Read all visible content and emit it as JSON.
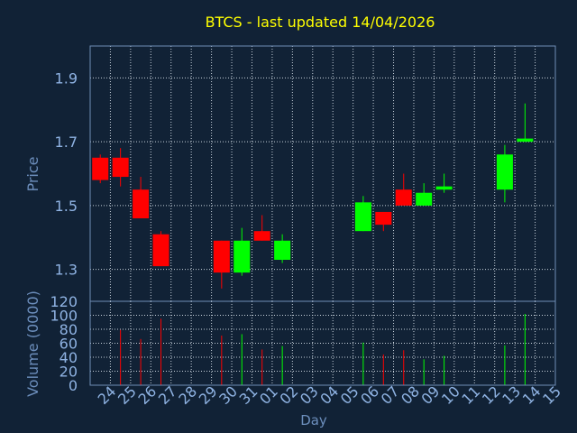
{
  "title": "BTCS - last updated 14/04/2026",
  "colors": {
    "background": "#112236",
    "title": "#ffff00",
    "up": "#00ff00",
    "down": "#ff0000",
    "grid": "#c8d2dc",
    "axis_text": "#8fb3e3"
  },
  "chart_data": [
    {
      "type": "candlestick",
      "ylabel": "Price",
      "ylim": [
        1.2,
        2.0
      ],
      "yticks": [
        "1.3",
        "1.5",
        "1.7",
        "1.9"
      ],
      "grid": true,
      "candles": [
        {
          "day": "24",
          "open": 1.65,
          "high": 1.66,
          "low": 1.57,
          "close": 1.58
        },
        {
          "day": "25",
          "open": 1.65,
          "high": 1.68,
          "low": 1.56,
          "close": 1.59
        },
        {
          "day": "26",
          "open": 1.55,
          "high": 1.59,
          "low": 1.46,
          "close": 1.46
        },
        {
          "day": "27",
          "open": 1.41,
          "high": 1.42,
          "low": 1.31,
          "close": 1.31
        },
        {
          "day": "30",
          "open": 1.39,
          "high": 1.39,
          "low": 1.24,
          "close": 1.29
        },
        {
          "day": "31",
          "open": 1.29,
          "high": 1.43,
          "low": 1.28,
          "close": 1.39
        },
        {
          "day": "01",
          "open": 1.42,
          "high": 1.47,
          "low": 1.39,
          "close": 1.39
        },
        {
          "day": "02",
          "open": 1.33,
          "high": 1.41,
          "low": 1.32,
          "close": 1.39
        },
        {
          "day": "06",
          "open": 1.42,
          "high": 1.53,
          "low": 1.42,
          "close": 1.51
        },
        {
          "day": "07",
          "open": 1.48,
          "high": 1.48,
          "low": 1.42,
          "close": 1.44
        },
        {
          "day": "08",
          "open": 1.55,
          "high": 1.6,
          "low": 1.5,
          "close": 1.5
        },
        {
          "day": "09",
          "open": 1.5,
          "high": 1.57,
          "low": 1.5,
          "close": 1.54
        },
        {
          "day": "10",
          "open": 1.55,
          "high": 1.6,
          "low": 1.54,
          "close": 1.56
        },
        {
          "day": "13",
          "open": 1.55,
          "high": 1.69,
          "low": 1.51,
          "close": 1.66
        },
        {
          "day": "14",
          "open": 1.7,
          "high": 1.82,
          "low": 1.7,
          "close": 1.71
        }
      ]
    },
    {
      "type": "bar",
      "xlabel": "Day",
      "ylabel": "Volume (0000)",
      "ylim": [
        0,
        120
      ],
      "yticks": [
        "0",
        "20",
        "40",
        "60",
        "80",
        "100",
        "120"
      ],
      "categories": [
        "24",
        "25",
        "26",
        "27",
        "28",
        "29",
        "30",
        "31",
        "01",
        "02",
        "03",
        "04",
        "05",
        "06",
        "07",
        "08",
        "09",
        "10",
        "11",
        "12",
        "13",
        "14",
        "15"
      ],
      "bars": [
        {
          "day": "25",
          "value": 79,
          "direction": "down"
        },
        {
          "day": "26",
          "value": 66,
          "direction": "down"
        },
        {
          "day": "27",
          "value": 95,
          "direction": "down"
        },
        {
          "day": "30",
          "value": 71,
          "direction": "down"
        },
        {
          "day": "31",
          "value": 73,
          "direction": "up"
        },
        {
          "day": "01",
          "value": 51,
          "direction": "down"
        },
        {
          "day": "02",
          "value": 56,
          "direction": "up"
        },
        {
          "day": "06",
          "value": 61,
          "direction": "up"
        },
        {
          "day": "07",
          "value": 44,
          "direction": "down"
        },
        {
          "day": "08",
          "value": 50,
          "direction": "down"
        },
        {
          "day": "09",
          "value": 37,
          "direction": "up"
        },
        {
          "day": "10",
          "value": 42,
          "direction": "up"
        },
        {
          "day": "13",
          "value": 57,
          "direction": "up"
        },
        {
          "day": "14",
          "value": 102,
          "direction": "up"
        }
      ]
    }
  ]
}
